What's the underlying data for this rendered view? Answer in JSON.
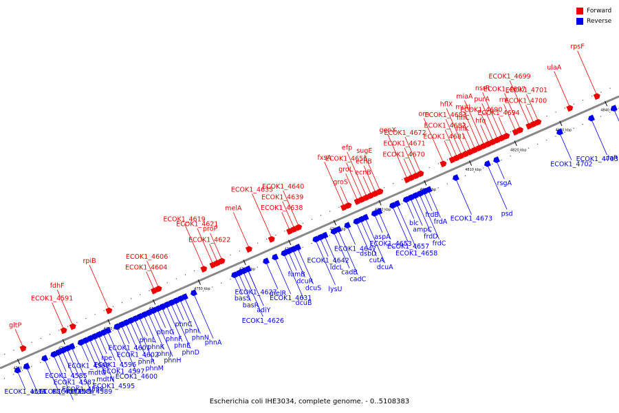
{
  "caption": "Escherichia coli IHE3034, complete genome. - 0..5108383",
  "colors": {
    "forward": "#ee0000",
    "reverse": "#0000ee",
    "backbone": "#888888",
    "tick": "#000000"
  },
  "legend": [
    {
      "label": "Forward",
      "color": "#ee0000"
    },
    {
      "label": "Reverse",
      "color": "#0000ee"
    }
  ],
  "scale": {
    "start_kbp": 4710,
    "end_kbp": 4840,
    "step_kbp": 10,
    "unit": "kbp"
  },
  "forward_genes": [
    {
      "name": "gltP",
      "pos": 4712
    },
    {
      "name": "ECOK1_4591",
      "pos": 4721
    },
    {
      "name": "fdhF",
      "pos": 4723
    },
    {
      "name": "rpiB",
      "pos": 4731
    },
    {
      "name": "ECOK1_4604",
      "pos": 4741
    },
    {
      "name": "ECOK1_4606",
      "pos": 4742
    },
    {
      "name": "ECOK1_4621",
      "pos": 4754
    },
    {
      "name": "ECOK1_4619",
      "pos": 4752
    },
    {
      "name": "ECOK1_4622",
      "pos": 4755
    },
    {
      "name": "proP",
      "pos": 4756
    },
    {
      "name": "melA",
      "pos": 4762
    },
    {
      "name": "ECOK1_4635",
      "pos": 4767
    },
    {
      "name": "ECOK1_4638",
      "pos": 4771
    },
    {
      "name": "ECOK1_4639",
      "pos": 4772
    },
    {
      "name": "ECOK1_4640",
      "pos": 4773
    },
    {
      "name": "fxsA",
      "pos": 4783
    },
    {
      "name": "groS",
      "pos": 4784
    },
    {
      "name": "groL",
      "pos": 4786
    },
    {
      "name": "ECOK1_4656",
      "pos": 4787
    },
    {
      "name": "efp",
      "pos": 4788
    },
    {
      "name": "ecnB",
      "pos": 4789
    },
    {
      "name": "ecnB",
      "pos": 4790
    },
    {
      "name": "sugE",
      "pos": 4791
    },
    {
      "name": "genX",
      "pos": 4797
    },
    {
      "name": "ECOK1_4670",
      "pos": 4798
    },
    {
      "name": "ECOK1_4671",
      "pos": 4799
    },
    {
      "name": "ECOK1_4672",
      "pos": 4800
    },
    {
      "name": "orn",
      "pos": 4805
    },
    {
      "name": "ECOK1_4681",
      "pos": 4807
    },
    {
      "name": "ECOK1_4682",
      "pos": 4808
    },
    {
      "name": "ECOK1_4683",
      "pos": 4809
    },
    {
      "name": "hflX",
      "pos": 4810
    },
    {
      "name": "hflK",
      "pos": 4811
    },
    {
      "name": "hflC",
      "pos": 4812
    },
    {
      "name": "mutL",
      "pos": 4813
    },
    {
      "name": "miaA",
      "pos": 4814
    },
    {
      "name": "hfq",
      "pos": 4815
    },
    {
      "name": "ECOK1_4690",
      "pos": 4816
    },
    {
      "name": "purA",
      "pos": 4817
    },
    {
      "name": "nsrR",
      "pos": 4818
    },
    {
      "name": "ECOK1_4694",
      "pos": 4819
    },
    {
      "name": "rnr",
      "pos": 4821
    },
    {
      "name": "ECOK1_4697",
      "pos": 4822
    },
    {
      "name": "ECOK1_4699",
      "pos": 4824
    },
    {
      "name": "ECOK1_4700",
      "pos": 4825
    },
    {
      "name": "ECOK1_4701",
      "pos": 4826
    },
    {
      "name": "ulaA",
      "pos": 4833
    },
    {
      "name": "rpsF",
      "pos": 4839
    }
  ],
  "reverse_genes": [
    {
      "name": "ECOK1_4573",
      "pos": 4709
    },
    {
      "name": "acsA",
      "pos": 4711
    },
    {
      "name": "ECOK1_4582",
      "pos": 4715
    },
    {
      "name": "ECOK1_4584",
      "pos": 4717
    },
    {
      "name": "ECOK1_4585",
      "pos": 4718
    },
    {
      "name": "ECOK1_4587",
      "pos": 4719
    },
    {
      "name": "ECOK1_4588",
      "pos": 4720
    },
    {
      "name": "ECOK1_4589",
      "pos": 4721
    },
    {
      "name": "ECOK1_4592",
      "pos": 4723
    },
    {
      "name": "mdtO",
      "pos": 4724
    },
    {
      "name": "mdtN",
      "pos": 4725
    },
    {
      "name": "ECOK1_4595",
      "pos": 4726
    },
    {
      "name": "rpe",
      "pos": 4727
    },
    {
      "name": "ECOK1_4596",
      "pos": 4728
    },
    {
      "name": "ECOK1_4597",
      "pos": 4729
    },
    {
      "name": "ECOK1_4600",
      "pos": 4731
    },
    {
      "name": "ECOK1_4601",
      "pos": 4732
    },
    {
      "name": "ECOK1_4602",
      "pos": 4733
    },
    {
      "name": "phnP",
      "pos": 4734
    },
    {
      "name": "phnM",
      "pos": 4735
    },
    {
      "name": "phnL",
      "pos": 4736
    },
    {
      "name": "phnK",
      "pos": 4737
    },
    {
      "name": "phnJ",
      "pos": 4738
    },
    {
      "name": "phnH",
      "pos": 4739
    },
    {
      "name": "phnG",
      "pos": 4740
    },
    {
      "name": "phnF",
      "pos": 4741
    },
    {
      "name": "phnE",
      "pos": 4742
    },
    {
      "name": "phnD",
      "pos": 4743
    },
    {
      "name": "phnC",
      "pos": 4744
    },
    {
      "name": "phnI",
      "pos": 4745
    },
    {
      "name": "phnN",
      "pos": 4746
    },
    {
      "name": "phnA",
      "pos": 4748
    },
    {
      "name": "basS",
      "pos": 4757
    },
    {
      "name": "basR",
      "pos": 4758
    },
    {
      "name": "adiY",
      "pos": 4760
    },
    {
      "name": "ECOK1_4626",
      "pos": 4759
    },
    {
      "name": "ECOK1_4627",
      "pos": 4760
    },
    {
      "name": "melR",
      "pos": 4764
    },
    {
      "name": "ECOK1_4631",
      "pos": 4766
    },
    {
      "name": "dcuB",
      "pos": 4768
    },
    {
      "name": "fumB",
      "pos": 4769
    },
    {
      "name": "dcuR",
      "pos": 4770
    },
    {
      "name": "dcuS",
      "pos": 4771
    },
    {
      "name": "lysU",
      "pos": 4775
    },
    {
      "name": "ECOK1_4642",
      "pos": 4776
    },
    {
      "name": "ldcL",
      "pos": 4777
    },
    {
      "name": "cadB",
      "pos": 4779
    },
    {
      "name": "cadC",
      "pos": 4780
    },
    {
      "name": "ECOK1_4647",
      "pos": 4782
    },
    {
      "name": "dsbD",
      "pos": 4784
    },
    {
      "name": "cutA",
      "pos": 4785
    },
    {
      "name": "dcuA",
      "pos": 4786
    },
    {
      "name": "aspA",
      "pos": 4788
    },
    {
      "name": "ECOK1_4653",
      "pos": 4789
    },
    {
      "name": "ECOK1_4657",
      "pos": 4792
    },
    {
      "name": "ECOK1_4658",
      "pos": 4793
    },
    {
      "name": "blc",
      "pos": 4795
    },
    {
      "name": "ampC",
      "pos": 4796
    },
    {
      "name": "frdD",
      "pos": 4797
    },
    {
      "name": "frdC",
      "pos": 4798
    },
    {
      "name": "frdB",
      "pos": 4799
    },
    {
      "name": "frdA",
      "pos": 4800
    },
    {
      "name": "ECOK1_4673",
      "pos": 4806
    },
    {
      "name": "psd",
      "pos": 4813
    },
    {
      "name": "rsgA",
      "pos": 4815
    },
    {
      "name": "ECOK1_4702",
      "pos": 4829
    },
    {
      "name": "ECOK1_4703",
      "pos": 4836
    },
    {
      "name": "ulaR",
      "pos": 4841
    }
  ]
}
